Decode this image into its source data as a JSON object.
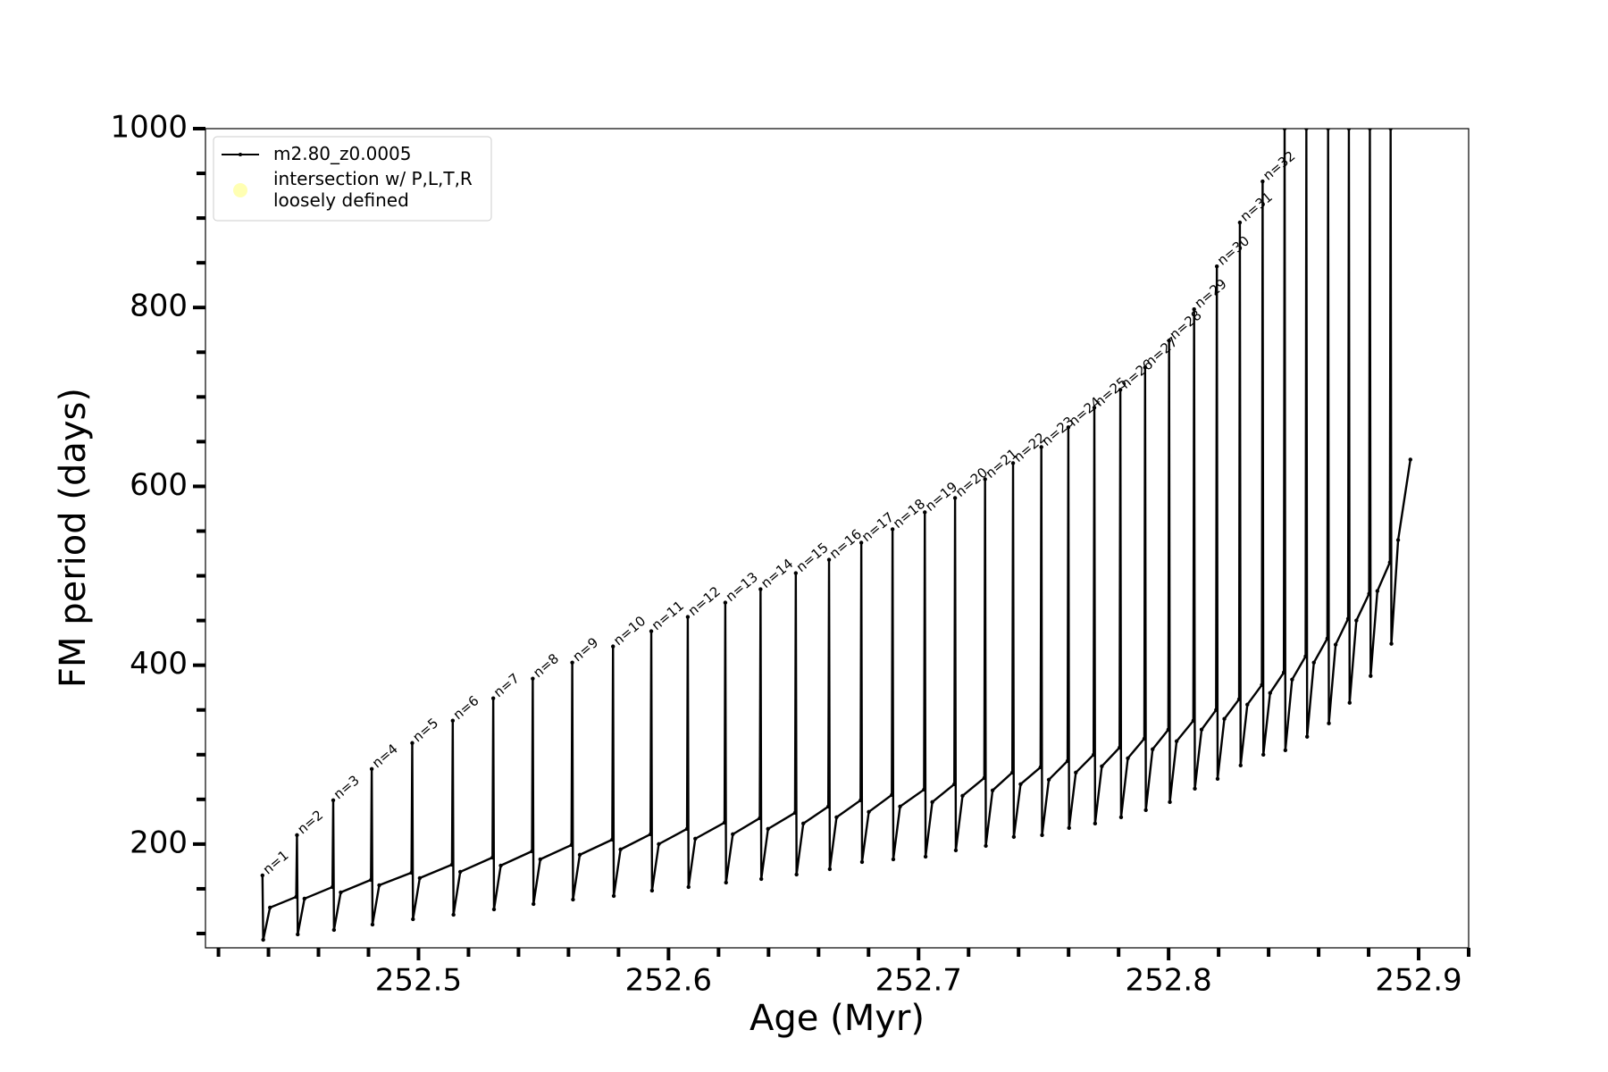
{
  "chart_data": {
    "type": "line",
    "xlabel": "Age (Myr)",
    "ylabel": "FM period (days)",
    "xlim": [
      252.4148,
      252.92
    ],
    "ylim": [
      84,
      1000
    ],
    "xticks": [
      252.5,
      252.6,
      252.7,
      252.8,
      252.9
    ],
    "xminorticks": [
      252.42,
      252.44,
      252.46,
      252.48,
      252.52,
      252.54,
      252.56,
      252.58,
      252.62,
      252.64,
      252.66,
      252.68,
      252.72,
      252.74,
      252.76,
      252.78,
      252.82,
      252.84,
      252.86,
      252.88,
      252.92
    ],
    "yticks": [
      200,
      400,
      600,
      800,
      1000
    ],
    "yminorticks": [
      100,
      150,
      250,
      300,
      350,
      450,
      500,
      550,
      650,
      700,
      750,
      850,
      900,
      950
    ],
    "legend": "upper left",
    "series": [
      {
        "name": "m2.80_z0.0005",
        "color": "#000000",
        "x": [
          252.4376,
          252.4379,
          252.4406,
          252.4511,
          252.4514,
          252.4517,
          252.4544,
          252.4656,
          252.4659,
          252.4662,
          252.4689,
          252.481,
          252.4813,
          252.4816,
          252.4843,
          252.4972,
          252.4975,
          252.4978,
          252.5005,
          252.5134,
          252.5137,
          252.514,
          252.5167,
          252.5296,
          252.5299,
          252.5302,
          252.5329,
          252.5454,
          252.5457,
          252.546,
          252.5487,
          252.5612,
          252.5615,
          252.5618,
          252.5645,
          252.5775,
          252.5778,
          252.5781,
          252.5808,
          252.5928,
          252.5931,
          252.5934,
          252.5961,
          252.6074,
          252.6077,
          252.608,
          252.6107,
          252.6224,
          252.6227,
          252.623,
          252.6257,
          252.6365,
          252.6368,
          252.6371,
          252.6398,
          252.6506,
          252.6509,
          252.6512,
          252.6539,
          252.6639,
          252.6642,
          252.6645,
          252.6672,
          252.6768,
          252.6771,
          252.6774,
          252.6801,
          252.6893,
          252.6896,
          252.6899,
          252.6926,
          252.7022,
          252.7025,
          252.7028,
          252.7055,
          252.7143,
          252.7146,
          252.7149,
          252.7176,
          252.7263,
          252.7266,
          252.7269,
          252.7296,
          252.7375,
          252.7378,
          252.7381,
          252.7408,
          252.7488,
          252.7491,
          252.7494,
          252.7521,
          252.7596,
          252.7599,
          252.7602,
          252.7629,
          252.77,
          252.7703,
          252.7706,
          252.7733,
          252.7804,
          252.7807,
          252.781,
          252.7837,
          252.7903,
          252.7906,
          252.7909,
          252.7936,
          252.7999,
          252.8002,
          252.8005,
          252.8032,
          252.8099,
          252.8102,
          252.8105,
          252.8132,
          252.819,
          252.8193,
          252.8196,
          252.8223,
          252.8282,
          252.8285,
          252.8288,
          252.8315,
          252.8373,
          252.8376,
          252.8379,
          252.8406,
          252.8461,
          252.8464,
          252.8467,
          252.8494,
          252.8548,
          252.8551,
          252.8554,
          252.8581,
          252.8635,
          252.8638,
          252.8641,
          252.8668,
          252.8718,
          252.8721,
          252.8724,
          252.8751,
          252.8802,
          252.8805,
          252.8808,
          252.8835,
          252.8885,
          252.8888,
          252.8891,
          252.8918,
          252.8967
        ],
        "values": [
          165,
          93,
          129,
          141,
          210,
          99,
          139,
          152,
          249,
          104,
          146,
          160,
          284,
          110,
          154,
          168,
          313,
          116,
          162,
          177,
          338,
          121,
          169,
          185,
          363,
          127,
          176,
          192,
          385,
          133,
          183,
          199,
          403,
          138,
          188,
          205,
          421,
          142,
          194,
          211,
          438,
          148,
          200,
          217,
          454,
          152,
          206,
          224,
          470,
          157,
          211,
          229,
          485,
          161,
          217,
          235,
          503,
          166,
          223,
          242,
          518,
          172,
          230,
          249,
          537,
          180,
          236,
          255,
          552,
          183,
          242,
          261,
          571,
          186,
          247,
          267,
          587,
          193,
          254,
          274,
          608,
          198,
          260,
          280,
          626,
          208,
          267,
          286,
          644,
          210,
          272,
          293,
          666,
          218,
          280,
          300,
          688,
          223,
          287,
          308,
          708,
          230,
          296,
          318,
          733,
          238,
          306,
          328,
          763,
          247,
          315,
          338,
          798,
          262,
          328,
          350,
          846,
          273,
          340,
          362,
          895,
          288,
          356,
          378,
          941,
          300,
          369,
          392,
          1000,
          305,
          384,
          410,
          1000,
          320,
          403,
          430,
          1000,
          335,
          423,
          452,
          1000,
          358,
          450,
          480,
          1000,
          388,
          483,
          515,
          1000,
          424,
          540,
          630
        ]
      },
      {
        "name": "intersection w/ P,L,T,R\nloosely defined",
        "color": "#ffffb3",
        "type": "scatter",
        "x": [],
        "values": []
      }
    ],
    "pulse_labels": [
      "n=1",
      "n=2",
      "n=3",
      "n=4",
      "n=5",
      "n=6",
      "n=7",
      "n=8",
      "n=9",
      "n=10",
      "n=11",
      "n=12",
      "n=13",
      "n=14",
      "n=15",
      "n=16",
      "n=17",
      "n=18",
      "n=19",
      "n=20",
      "n=21",
      "n=22",
      "n=23",
      "n=24",
      "n=25",
      "n=26",
      "n=27",
      "n=28",
      "n=29",
      "n=30",
      "n=31",
      "n=32"
    ]
  }
}
